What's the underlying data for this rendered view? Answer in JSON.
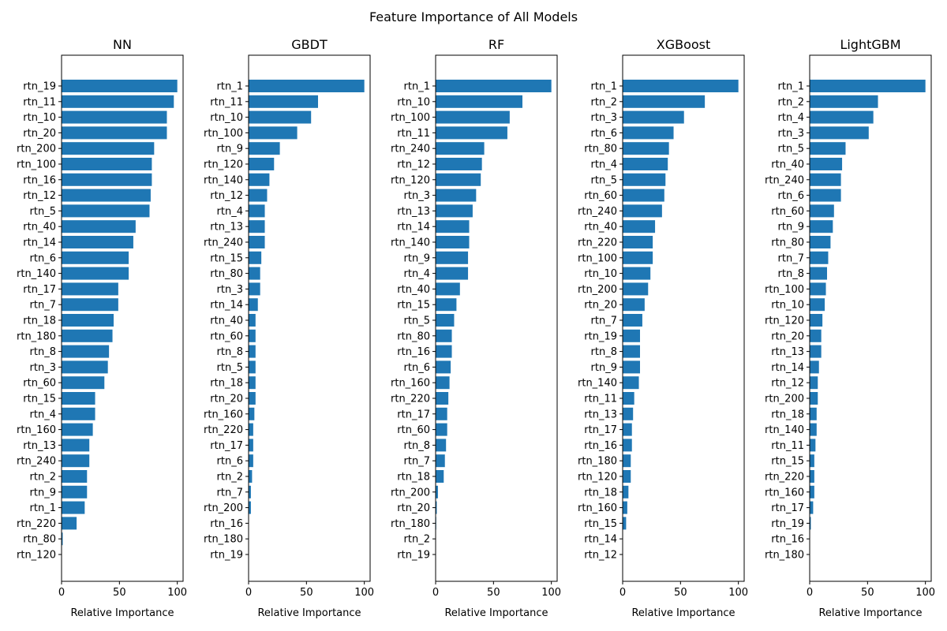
{
  "figure": {
    "title": "Feature Importance of All Models"
  },
  "colors": {
    "bar": "#1f77b4",
    "axis": "#000000"
  },
  "chart_data": [
    {
      "type": "bar",
      "orientation": "horizontal",
      "title": "NN",
      "xlabel": "Relative Importance",
      "ylabel": "",
      "xlim": [
        0,
        105
      ],
      "xticks": [
        0,
        50,
        100
      ],
      "grid": false,
      "categories": [
        "rtn_19",
        "rtn_11",
        "rtn_10",
        "rtn_20",
        "rtn_200",
        "rtn_100",
        "rtn_16",
        "rtn_12",
        "rtn_5",
        "rtn_40",
        "rtn_14",
        "rtn_6",
        "rtn_140",
        "rtn_17",
        "rtn_7",
        "rtn_18",
        "rtn_180",
        "rtn_8",
        "rtn_3",
        "rtn_60",
        "rtn_15",
        "rtn_4",
        "rtn_160",
        "rtn_13",
        "rtn_240",
        "rtn_2",
        "rtn_9",
        "rtn_1",
        "rtn_220",
        "rtn_80",
        "rtn_120"
      ],
      "values": [
        100,
        97,
        91,
        91,
        80,
        78,
        78,
        77,
        76,
        64,
        62,
        58,
        58,
        49,
        49,
        45,
        44,
        41,
        40,
        37,
        29,
        29,
        27,
        24,
        24,
        22,
        22,
        20,
        13,
        1,
        0
      ]
    },
    {
      "type": "bar",
      "orientation": "horizontal",
      "title": "GBDT",
      "xlabel": "Relative Importance",
      "ylabel": "",
      "xlim": [
        0,
        105
      ],
      "xticks": [
        0,
        50,
        100
      ],
      "grid": false,
      "categories": [
        "rtn_1",
        "rtn_11",
        "rtn_10",
        "rtn_100",
        "rtn_9",
        "rtn_120",
        "rtn_140",
        "rtn_12",
        "rtn_4",
        "rtn_13",
        "rtn_240",
        "rtn_15",
        "rtn_80",
        "rtn_3",
        "rtn_14",
        "rtn_40",
        "rtn_60",
        "rtn_8",
        "rtn_5",
        "rtn_18",
        "rtn_20",
        "rtn_160",
        "rtn_220",
        "rtn_17",
        "rtn_6",
        "rtn_2",
        "rtn_7",
        "rtn_200",
        "rtn_16",
        "rtn_180",
        "rtn_19"
      ],
      "values": [
        100,
        60,
        54,
        42,
        27,
        22,
        18,
        16,
        14,
        14,
        14,
        11,
        10,
        10,
        8,
        6,
        6,
        6,
        6,
        6,
        6,
        5,
        4,
        4,
        4,
        3,
        2,
        2,
        0,
        0,
        0
      ]
    },
    {
      "type": "bar",
      "orientation": "horizontal",
      "title": "RF",
      "xlabel": "Relative Importance",
      "ylabel": "",
      "xlim": [
        0,
        105
      ],
      "xticks": [
        0,
        50,
        100
      ],
      "grid": false,
      "categories": [
        "rtn_1",
        "rtn_10",
        "rtn_100",
        "rtn_11",
        "rtn_240",
        "rtn_12",
        "rtn_120",
        "rtn_3",
        "rtn_13",
        "rtn_14",
        "rtn_140",
        "rtn_9",
        "rtn_4",
        "rtn_40",
        "rtn_15",
        "rtn_5",
        "rtn_80",
        "rtn_16",
        "rtn_6",
        "rtn_160",
        "rtn_220",
        "rtn_17",
        "rtn_60",
        "rtn_8",
        "rtn_7",
        "rtn_18",
        "rtn_200",
        "rtn_20",
        "rtn_180",
        "rtn_2",
        "rtn_19"
      ],
      "values": [
        100,
        75,
        64,
        62,
        42,
        40,
        39,
        35,
        32,
        29,
        29,
        28,
        28,
        21,
        18,
        16,
        14,
        14,
        13,
        12,
        11,
        10,
        10,
        9,
        8,
        7,
        2,
        1,
        0.5,
        0,
        0
      ]
    },
    {
      "type": "bar",
      "orientation": "horizontal",
      "title": "XGBoost",
      "xlabel": "Relative Importance",
      "ylabel": "",
      "xlim": [
        0,
        105
      ],
      "xticks": [
        0,
        50,
        100
      ],
      "grid": false,
      "categories": [
        "rtn_1",
        "rtn_2",
        "rtn_3",
        "rtn_6",
        "rtn_80",
        "rtn_4",
        "rtn_5",
        "rtn_60",
        "rtn_240",
        "rtn_40",
        "rtn_220",
        "rtn_100",
        "rtn_10",
        "rtn_200",
        "rtn_20",
        "rtn_7",
        "rtn_19",
        "rtn_8",
        "rtn_9",
        "rtn_140",
        "rtn_11",
        "rtn_13",
        "rtn_17",
        "rtn_16",
        "rtn_180",
        "rtn_120",
        "rtn_18",
        "rtn_160",
        "rtn_15",
        "rtn_14",
        "rtn_12"
      ],
      "values": [
        100,
        71,
        53,
        44,
        40,
        39,
        37,
        36,
        34,
        28,
        26,
        26,
        24,
        22,
        19,
        17,
        15,
        15,
        15,
        14,
        10,
        9,
        8,
        8,
        7,
        7,
        5,
        4,
        3,
        0,
        0
      ]
    },
    {
      "type": "bar",
      "orientation": "horizontal",
      "title": "LightGBM",
      "xlabel": "Relative Importance",
      "ylabel": "",
      "xlim": [
        0,
        105
      ],
      "xticks": [
        0,
        50,
        100
      ],
      "grid": false,
      "categories": [
        "rtn_1",
        "rtn_2",
        "rtn_4",
        "rtn_3",
        "rtn_5",
        "rtn_40",
        "rtn_240",
        "rtn_6",
        "rtn_60",
        "rtn_9",
        "rtn_80",
        "rtn_7",
        "rtn_8",
        "rtn_100",
        "rtn_10",
        "rtn_120",
        "rtn_20",
        "rtn_13",
        "rtn_14",
        "rtn_12",
        "rtn_200",
        "rtn_18",
        "rtn_140",
        "rtn_11",
        "rtn_15",
        "rtn_220",
        "rtn_160",
        "rtn_17",
        "rtn_19",
        "rtn_16",
        "rtn_180"
      ],
      "values": [
        100,
        59,
        55,
        51,
        31,
        28,
        27,
        27,
        21,
        20,
        18,
        16,
        15,
        14,
        13,
        11,
        10,
        10,
        8,
        7,
        7,
        6,
        6,
        5,
        4,
        4,
        4,
        3,
        1,
        0,
        0
      ]
    }
  ]
}
